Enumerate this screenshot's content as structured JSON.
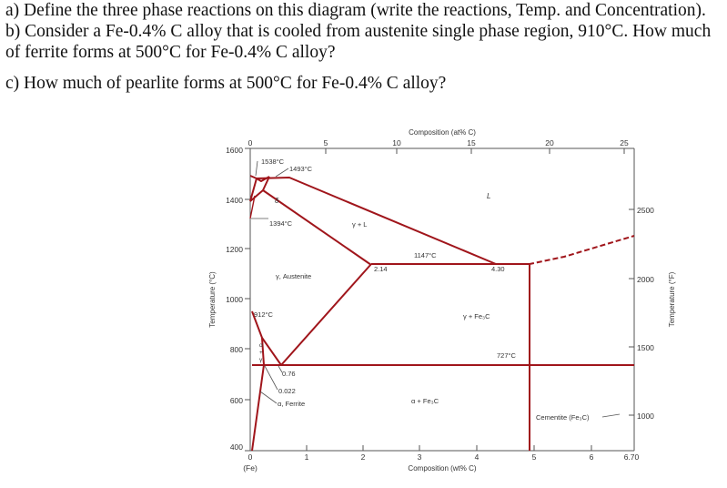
{
  "questions": [
    "a) Define the three phase reactions on this diagram (write the reactions, Temp. and Concentration).",
    "b) Consider a Fe-0.4% C alloy that is cooled from austenite single phase region, 910°C. How much",
    "of ferrite forms at 500°C for Fe-0.4% C alloy?",
    "c) How much of pearlite forms at 500°C for Fe-0.4% C alloy?"
  ],
  "diagram": {
    "top_axis_label": "Composition (at% C)",
    "top_ticks": [
      "0",
      "5",
      "10",
      "15",
      "20",
      "25"
    ],
    "bottom_axis_label": "Composition (wt% C)",
    "bottom_ticks": [
      "0",
      "1",
      "2",
      "3",
      "4",
      "5",
      "6",
      "6.70"
    ],
    "bottom_sub": "(Fe)",
    "left_axis_label": "Temperature (°C)",
    "left_ticks": [
      "1600",
      "1400",
      "1200",
      "1000",
      "800",
      "600",
      "400"
    ],
    "right_axis_label": "Temperature (°F)",
    "right_ticks": [
      "2500",
      "2000",
      "1500",
      "1000"
    ],
    "labels": {
      "t1538": "1538°C",
      "t1493": "1493°C",
      "t1394": "1394°C",
      "t1147": "1147°C",
      "t912": "912°C",
      "t727": "727°C",
      "c214": "2.14",
      "c430": "4.30",
      "c076": "0.76",
      "c0022": "0.022",
      "delta": "δ",
      "liquid": "L",
      "gamma_l": "γ + L",
      "austenite": "γ, Austenite",
      "gamma_fe3c": "γ + Fe₃C",
      "alpha_fe3c": "α + Fe₃C",
      "ferrite": "α, Ferrite",
      "cementite": "Cementite (Fe₃C)",
      "alpha_gamma": [
        "α",
        "+",
        "γ"
      ]
    },
    "colors": {
      "phase_line": "#a0151b",
      "axis": "#555555"
    }
  }
}
